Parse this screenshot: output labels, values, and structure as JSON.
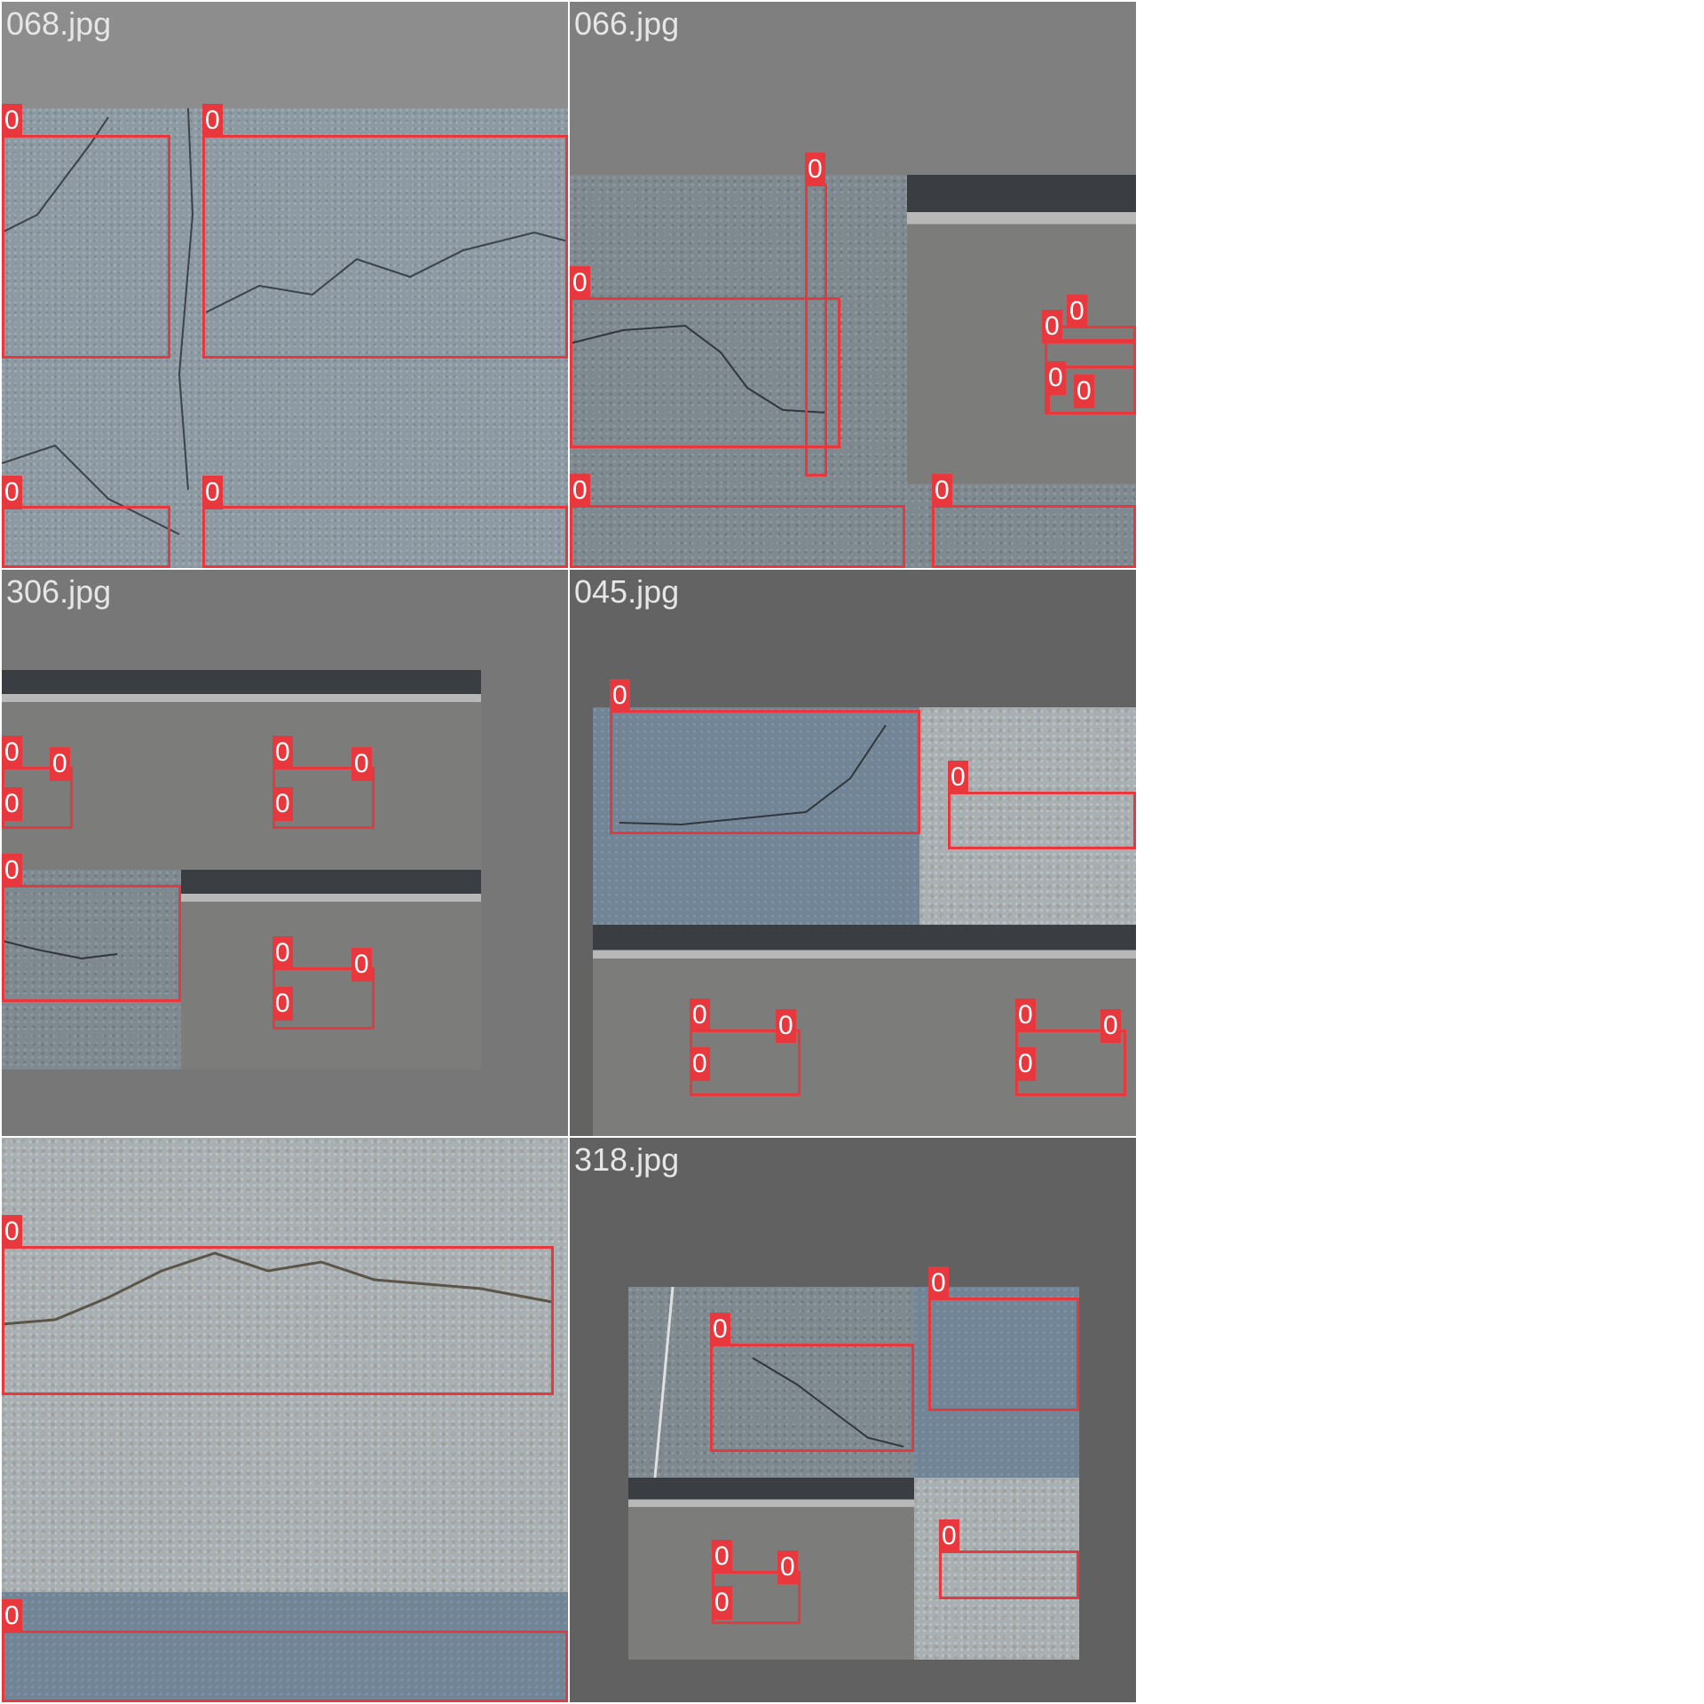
{
  "tiles": [
    {
      "title": "068.jpg"
    },
    {
      "title": "066.jpg"
    },
    {
      "title": "306.jpg"
    },
    {
      "title": "045.jpg"
    },
    {
      "title": ""
    },
    {
      "title": "318.jpg"
    }
  ],
  "class_label": "0",
  "colors": {
    "box": "#e8383d",
    "tile_bg_068": "#8d8d8d",
    "tile_bg_066": "#7f7f7f",
    "tile_bg_306": "#777777",
    "tile_bg_045": "#636363",
    "tile_bg_318": "#616161"
  }
}
